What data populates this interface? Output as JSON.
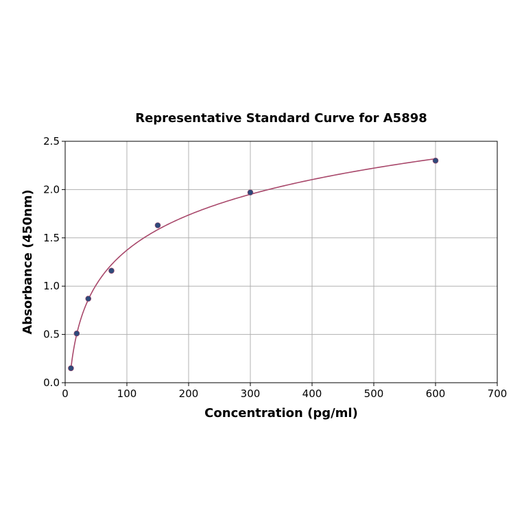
{
  "chart_data": {
    "type": "scatter",
    "title": "Representative Standard Curve for A5898",
    "xlabel": "Concentration (pg/ml)",
    "ylabel": "Absorbance (450nm)",
    "xlim": [
      0,
      700
    ],
    "ylim": [
      0,
      2.5
    ],
    "xticks": [
      0,
      100,
      200,
      300,
      400,
      500,
      600,
      700
    ],
    "yticks": [
      0.0,
      0.5,
      1.0,
      1.5,
      2.0,
      2.5
    ],
    "xtick_labels": [
      "0",
      "100",
      "200",
      "300",
      "400",
      "500",
      "600",
      "700"
    ],
    "ytick_labels": [
      "0.0",
      "0.5",
      "1.0",
      "1.5",
      "2.0",
      "2.5"
    ],
    "grid": true,
    "series": [
      {
        "points": [
          {
            "x": 9.375,
            "y": 0.15
          },
          {
            "x": 18.75,
            "y": 0.51
          },
          {
            "x": 37.5,
            "y": 0.87
          },
          {
            "x": 75,
            "y": 1.16
          },
          {
            "x": 150,
            "y": 1.63
          },
          {
            "x": 300,
            "y": 1.97
          },
          {
            "x": 600,
            "y": 2.3
          }
        ],
        "color": "#2e4a7a"
      }
    ],
    "fit_curve": {
      "color": "#a8476a",
      "x_range": [
        9.375,
        600
      ]
    }
  }
}
